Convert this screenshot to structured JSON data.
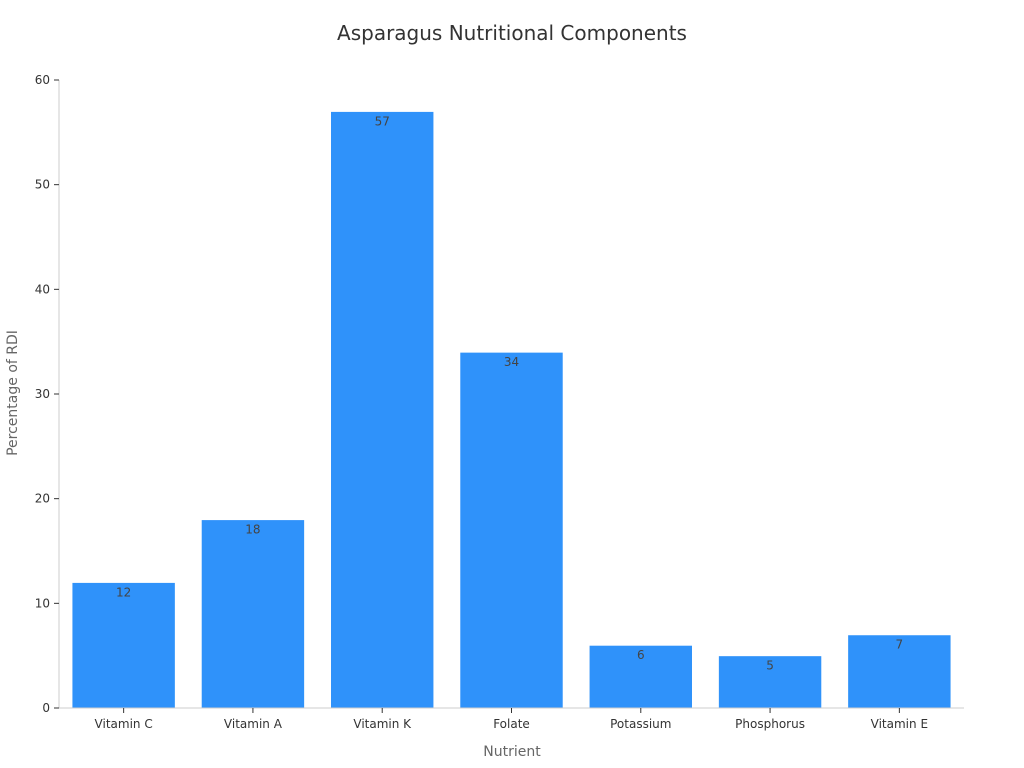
{
  "chart_data": {
    "type": "bar",
    "title": "Asparagus Nutritional Components",
    "xlabel": "Nutrient",
    "ylabel": "Percentage of RDI",
    "categories": [
      "Vitamin C",
      "Vitamin A",
      "Vitamin K",
      "Folate",
      "Potassium",
      "Phosphorus",
      "Vitamin E"
    ],
    "values": [
      12,
      18,
      57,
      34,
      6,
      5,
      7
    ],
    "ylim": [
      0,
      60
    ],
    "yticks": [
      "0",
      "10",
      "20",
      "30",
      "40",
      "50",
      "60"
    ],
    "bar_color": "#2f92fa",
    "grid": false,
    "legend": false
  }
}
